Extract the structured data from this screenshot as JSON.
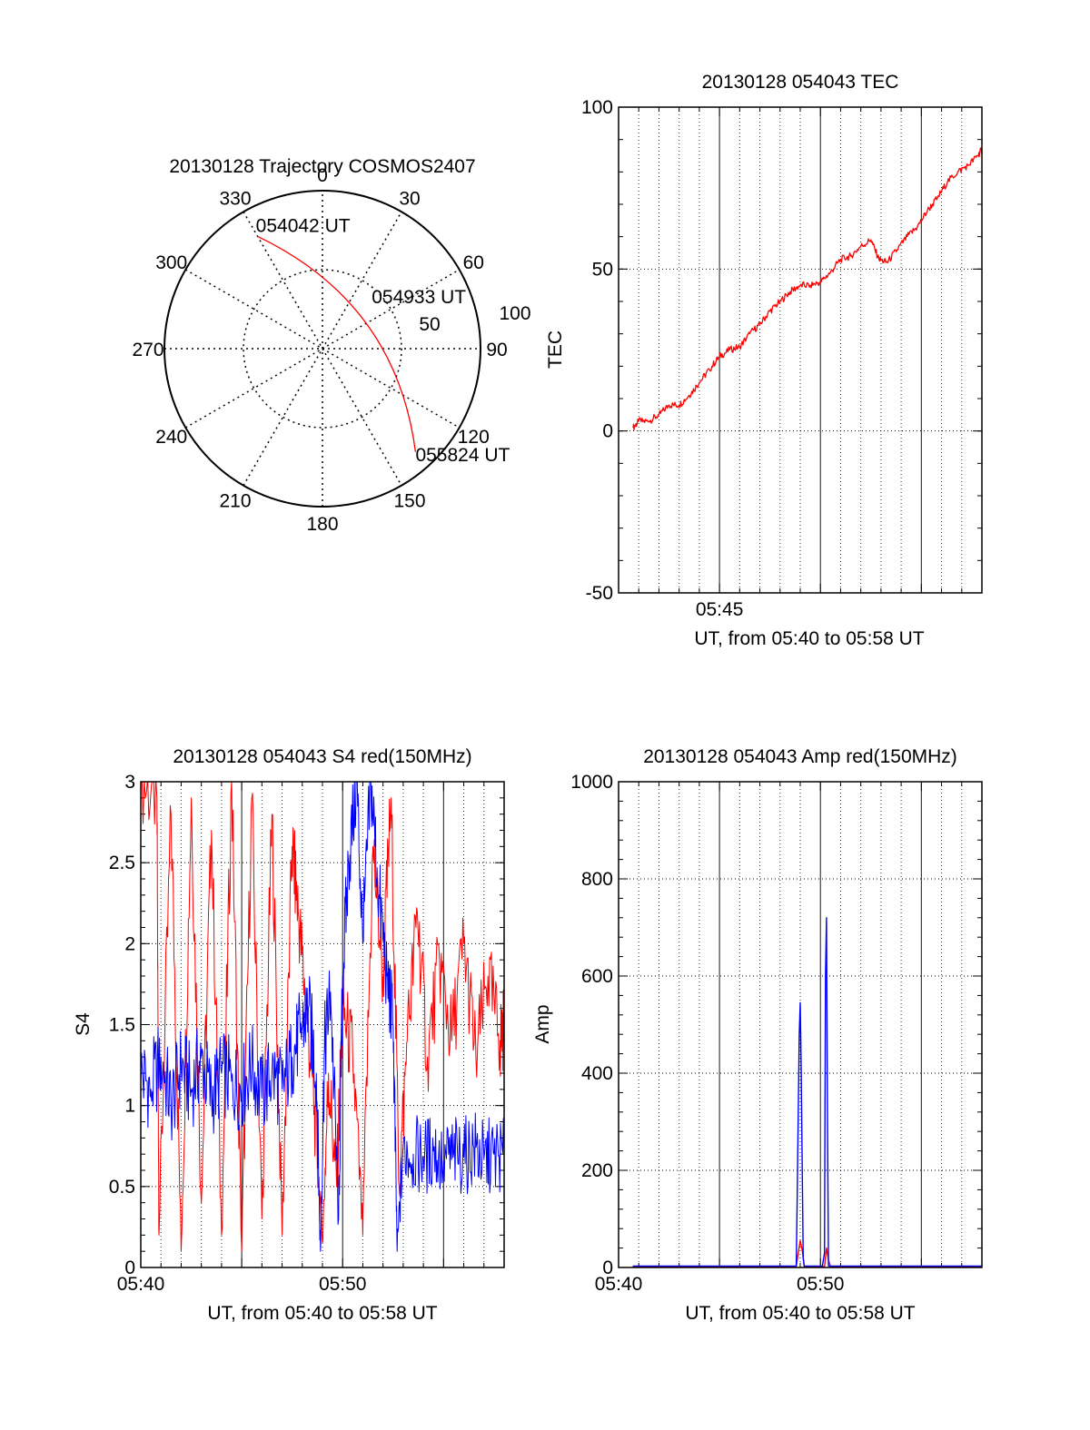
{
  "colors": {
    "red": "#ff0000",
    "blue": "#0000ff",
    "axis": "#000000",
    "grid": "#000000"
  },
  "chart_data": [
    {
      "id": "trajectory",
      "type": "polar",
      "title": "20130128 Trajectory COSMOS2407",
      "angle_labels": [
        "0",
        "30",
        "60",
        "90",
        "120",
        "150",
        "180",
        "210",
        "240",
        "270",
        "300",
        "330"
      ],
      "radius_labels": [
        "50",
        "100"
      ],
      "rmax": 100,
      "track": {
        "start": {
          "azimuth": 330,
          "elevation_offset": 82,
          "label": "054042 UT"
        },
        "mid": {
          "azimuth": 60,
          "elevation_offset": 32,
          "label": "054933 UT"
        },
        "end": {
          "azimuth": 138,
          "elevation_offset": 88,
          "label": "055824 UT"
        }
      }
    },
    {
      "id": "tec",
      "type": "line",
      "title": "20130128 054043 TEC",
      "ylabel": "TEC",
      "xlabel": "UT, from 05:40 to 05:58 UT",
      "ylim": [
        -50,
        100
      ],
      "yticks": [
        "-50",
        "0",
        "50",
        "100"
      ],
      "xlim": [
        40.0,
        58.0
      ],
      "xtick_labels": [
        {
          "x": 45,
          "label": "05:45"
        }
      ],
      "series": [
        {
          "color": "red",
          "x": [
            40.72,
            41,
            41.5,
            42,
            42.5,
            43,
            43.5,
            44,
            44.5,
            45,
            45.5,
            46,
            46.5,
            47,
            47.5,
            48,
            48.5,
            49,
            49.5,
            50,
            50.5,
            51,
            51.5,
            52,
            52.5,
            52.9,
            53.3,
            53.8,
            54.3,
            54.8,
            55.3,
            55.8,
            56.3,
            56.8,
            57.3,
            57.8,
            58.0
          ],
          "y": [
            1,
            3,
            3,
            5,
            8,
            8,
            11,
            15,
            19,
            23,
            25,
            26,
            30,
            33,
            37,
            40,
            43,
            45,
            45,
            46,
            49,
            53,
            54,
            57,
            59,
            53,
            52,
            56,
            60,
            63,
            68,
            72,
            77,
            80,
            82,
            85,
            87
          ]
        }
      ]
    },
    {
      "id": "s4",
      "type": "line",
      "title": "20130128 054043 S4 red(150MHz)",
      "ylabel": "S4",
      "xlabel": "UT, from 05:40 to 05:58 UT",
      "ylim": [
        0,
        3
      ],
      "yticks": [
        "0",
        "0.5",
        "1",
        "1.5",
        "2",
        "2.5",
        "3"
      ],
      "xlim": [
        40.0,
        58.0
      ],
      "xtick_labels": [
        {
          "x": 40,
          "label": "05:40"
        },
        {
          "x": 50,
          "label": "05:50"
        }
      ],
      "series": [
        {
          "color": "red",
          "x": [
            40.0,
            40.8,
            40.9,
            41.5,
            42.0,
            42.5,
            43.0,
            43.5,
            44.0,
            44.5,
            45.0,
            45.5,
            46.0,
            46.5,
            47.0,
            47.5,
            47.8,
            48.2,
            48.6,
            49.0,
            49.3,
            49.7,
            50.0,
            50.5,
            51.0,
            51.5,
            52.0,
            52.4,
            52.8,
            53.2,
            53.7,
            54.2,
            54.8,
            55.4,
            56.0,
            56.6,
            57.2,
            57.8,
            58.0
          ],
          "y": [
            3,
            2.9,
            0.2,
            2.8,
            0.1,
            2.9,
            0.4,
            2.7,
            0.2,
            3.0,
            0.1,
            2.9,
            0.3,
            2.8,
            0.2,
            2.6,
            2.2,
            1.6,
            1.0,
            0.15,
            1.2,
            0.5,
            1.6,
            1.3,
            0.2,
            2.6,
            1.8,
            2.9,
            0.5,
            1.4,
            2.2,
            1.3,
            1.9,
            1.4,
            2.0,
            1.3,
            1.8,
            1.4,
            1.5
          ]
        },
        {
          "color": "blue",
          "x": [
            40.0,
            40.5,
            41.0,
            41.5,
            42.0,
            42.5,
            43.0,
            43.5,
            44.0,
            44.5,
            45.0,
            45.5,
            46.0,
            46.5,
            47.0,
            47.5,
            47.9,
            48.3,
            48.7,
            48.9,
            49.1,
            49.4,
            49.8,
            50.0,
            50.3,
            50.7,
            51.0,
            51.4,
            51.8,
            52.2,
            52.5,
            52.7,
            53.0,
            53.5,
            54.0,
            54.5,
            55.0,
            55.5,
            56.0,
            56.5,
            57.0,
            57.5,
            58.0
          ],
          "y": [
            1.2,
            1.1,
            1.3,
            1.0,
            1.25,
            1.1,
            1.3,
            1.05,
            1.2,
            1.15,
            1.1,
            1.25,
            1.05,
            1.2,
            1.1,
            1.3,
            1.45,
            1.6,
            1.2,
            0.1,
            1.35,
            1.7,
            0.3,
            1.8,
            2.5,
            3.0,
            2.0,
            3.0,
            2.3,
            1.8,
            1.5,
            0.1,
            0.75,
            0.7,
            0.68,
            0.72,
            0.66,
            0.7,
            0.68,
            0.74,
            0.67,
            0.7,
            0.68
          ]
        }
      ]
    },
    {
      "id": "amp",
      "type": "line",
      "title": "20130128 054043 Amp red(150MHz)",
      "ylabel": "Amp",
      "xlabel": "UT, from 05:40 to 05:58 UT",
      "ylim": [
        0,
        1000
      ],
      "yticks": [
        "0",
        "200",
        "400",
        "600",
        "800",
        "1000"
      ],
      "xlim": [
        40.0,
        58.0
      ],
      "xtick_labels": [
        {
          "x": 40,
          "label": "05:40"
        },
        {
          "x": 50,
          "label": "05:50"
        }
      ],
      "series": [
        {
          "color": "red",
          "x": [
            40.7,
            48.8,
            48.9,
            49.0,
            49.1,
            49.2,
            50.2,
            50.3,
            50.4,
            50.5,
            58.0
          ],
          "y": [
            2,
            2,
            30,
            55,
            35,
            2,
            2,
            40,
            15,
            2,
            2
          ]
        },
        {
          "color": "blue",
          "x": [
            40.7,
            48.8,
            48.85,
            48.95,
            49.0,
            49.05,
            49.1,
            49.15,
            49.2,
            50.1,
            50.2,
            50.25,
            50.3,
            50.35,
            50.4,
            58.0
          ],
          "y": [
            3,
            3,
            150,
            480,
            545,
            400,
            200,
            20,
            3,
            3,
            30,
            600,
            720,
            300,
            3,
            3
          ]
        }
      ]
    }
  ]
}
